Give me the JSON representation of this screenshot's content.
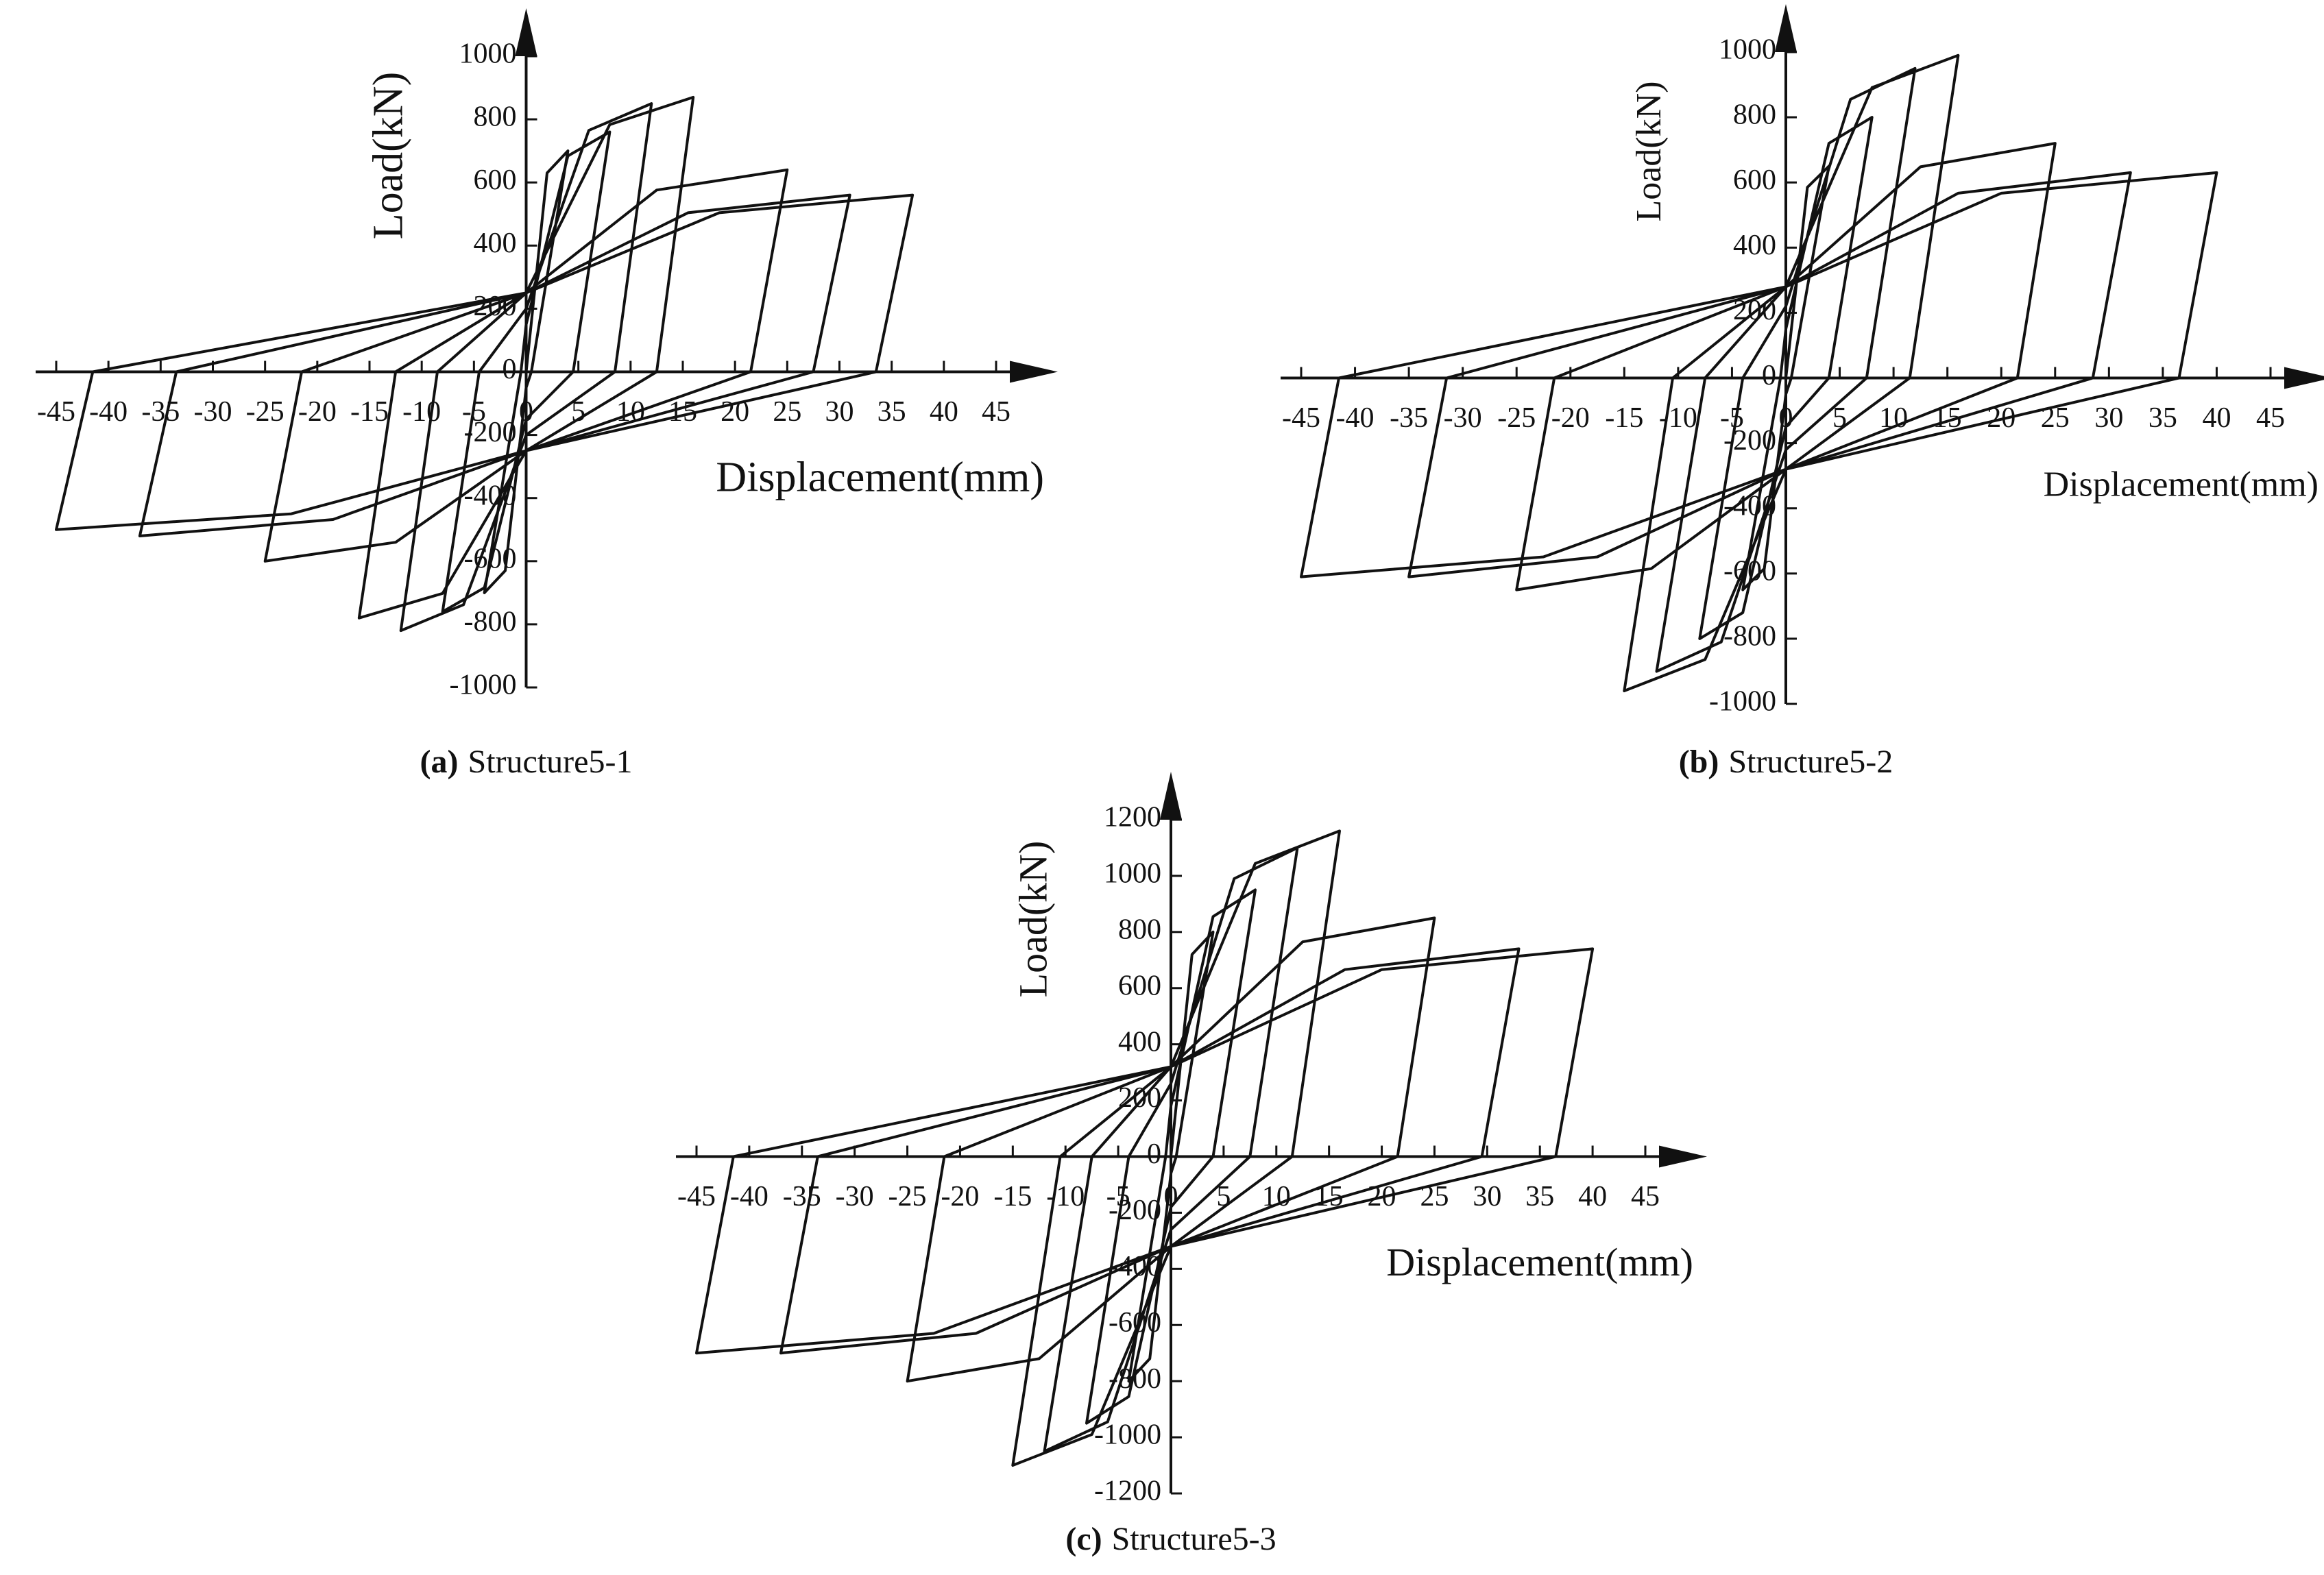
{
  "chart_data": [
    {
      "type": "line",
      "caption_label": "(a)",
      "caption": "Structure5-1",
      "xlabel": "Displacement(mm)",
      "ylabel": "Load(kN)",
      "xlim": [
        -45,
        45
      ],
      "ylim": [
        -1000,
        1000
      ],
      "xticks": [
        -45,
        -40,
        -35,
        -30,
        -25,
        -20,
        -15,
        -10,
        -5,
        0,
        5,
        10,
        15,
        20,
        25,
        30,
        35,
        40,
        45
      ],
      "yticks": [
        -1000,
        -800,
        -600,
        -400,
        -200,
        0,
        200,
        400,
        600,
        800,
        1000
      ],
      "color": "#111111",
      "x": [
        0,
        2,
        4,
        0.5,
        0,
        -2,
        -4,
        -0.5,
        0,
        4,
        8,
        4.5,
        0,
        -4,
        -8,
        -4.5,
        0,
        6,
        12,
        8.5,
        0,
        -6,
        -12,
        -8.5,
        0,
        8,
        16,
        12.5,
        0,
        -8,
        -16,
        -12.5,
        0,
        12.5,
        25,
        21.5,
        0,
        -12.5,
        -25,
        -21.5,
        0,
        15.5,
        31,
        27.5,
        0,
        -18.5,
        -37,
        -33.5,
        0,
        18.5,
        37,
        33.5,
        0,
        -22.5,
        -45,
        -41.5,
        0
      ],
      "values": [
        0,
        630,
        700,
        0,
        -50,
        -630,
        -700,
        0,
        150,
        684,
        760,
        0,
        -150,
        -684,
        -760,
        0,
        200,
        765,
        850,
        0,
        -200,
        -738,
        -820,
        0,
        250,
        783,
        870,
        0,
        -250,
        -702,
        -780,
        0,
        250,
        576,
        640,
        0,
        -250,
        -540,
        -600,
        0,
        250,
        504,
        560,
        0,
        -250,
        -468,
        -520,
        0,
        250,
        504,
        560,
        0,
        -250,
        -450,
        -500,
        0,
        250
      ]
    },
    {
      "type": "line",
      "caption_label": "(b)",
      "caption": "Structure5-2",
      "xlabel": "Displacement(mm)",
      "ylabel": "Load(kN)",
      "xlim": [
        -45,
        45
      ],
      "ylim": [
        -1000,
        1000
      ],
      "xticks": [
        -45,
        -40,
        -35,
        -30,
        -25,
        -20,
        -15,
        -10,
        -5,
        0,
        5,
        10,
        15,
        20,
        25,
        30,
        35,
        40,
        45
      ],
      "yticks": [
        -1000,
        -800,
        -600,
        -400,
        -200,
        0,
        200,
        400,
        600,
        800,
        1000
      ],
      "color": "#111111",
      "x": [
        0,
        2,
        4,
        0.5,
        0,
        -2,
        -4,
        -0.5,
        0,
        4,
        8,
        4,
        0,
        -4,
        -8,
        -4,
        0,
        6,
        12,
        7.5,
        0,
        -6,
        -12,
        -7.5,
        0,
        8,
        16,
        11.5,
        0,
        -7.5,
        -15,
        -10.5,
        0,
        12.5,
        25,
        21.5,
        0,
        -12.5,
        -25,
        -21.5,
        0,
        16,
        32,
        28.5,
        0,
        -17.5,
        -35,
        -31.5,
        0,
        20,
        40,
        36.5,
        0,
        -22.5,
        -45,
        -41.5,
        0
      ],
      "values": [
        0,
        585,
        650,
        0,
        -50,
        -585,
        -650,
        0,
        150,
        720,
        800,
        0,
        -150,
        -720,
        -800,
        0,
        220,
        855,
        950,
        0,
        -220,
        -810,
        -900,
        0,
        280,
        891,
        990,
        0,
        -280,
        -864,
        -960,
        0,
        280,
        648,
        720,
        0,
        -280,
        -585,
        -650,
        0,
        280,
        567,
        630,
        0,
        -280,
        -549,
        -610,
        0,
        280,
        567,
        630,
        0,
        -280,
        -549,
        -610,
        0,
        280
      ]
    },
    {
      "type": "line",
      "caption_label": "(c)",
      "caption": "Structure5-3",
      "xlabel": "Displacement(mm)",
      "ylabel": "Load(kN)",
      "xlim": [
        -45,
        45
      ],
      "ylim": [
        -1200,
        1200
      ],
      "xticks": [
        -45,
        -40,
        -35,
        -30,
        -25,
        -20,
        -15,
        -10,
        -5,
        0,
        5,
        10,
        15,
        20,
        25,
        30,
        35,
        40,
        45
      ],
      "yticks": [
        -1200,
        -1000,
        -800,
        -600,
        -400,
        -200,
        0,
        200,
        400,
        600,
        800,
        1000,
        1200
      ],
      "color": "#111111",
      "x": [
        0,
        2,
        4,
        0.5,
        0,
        -2,
        -4,
        -0.5,
        0,
        4,
        8,
        4,
        0,
        -4,
        -8,
        -4,
        0,
        6,
        12,
        7.5,
        0,
        -6,
        -12,
        -7.5,
        0,
        8,
        16,
        11.5,
        0,
        -7.5,
        -15,
        -10.5,
        0,
        12.5,
        25,
        21.5,
        0,
        -12.5,
        -25,
        -21.5,
        0,
        16.5,
        33,
        29.5,
        0,
        -18.5,
        -37,
        -33.5,
        0,
        20,
        40,
        36.5,
        0,
        -22.5,
        -45,
        -41.5,
        0
      ],
      "values": [
        0,
        720,
        800,
        0,
        -60,
        -720,
        -800,
        0,
        180,
        855,
        950,
        0,
        -180,
        -855,
        -950,
        0,
        260,
        990,
        1100,
        0,
        -260,
        -945,
        -1050,
        0,
        320,
        1044,
        1160,
        0,
        -320,
        -990,
        -1100,
        0,
        320,
        765,
        850,
        0,
        -320,
        -720,
        -800,
        0,
        320,
        666,
        740,
        0,
        -320,
        -630,
        -700,
        0,
        320,
        666,
        740,
        0,
        -320,
        -630,
        -700,
        0,
        320
      ]
    }
  ]
}
